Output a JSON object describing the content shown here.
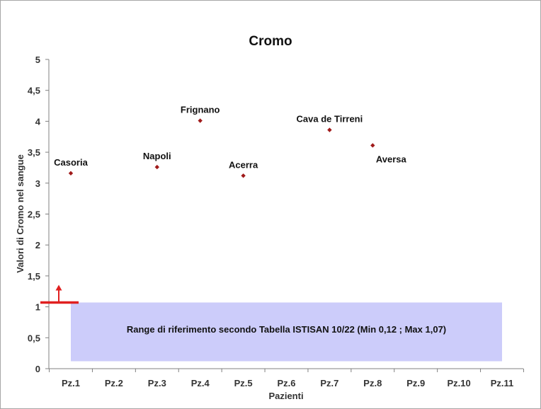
{
  "chart_data": {
    "type": "scatter",
    "title": "Cromo",
    "xlabel": "Pazienti",
    "ylabel": "Valori di Cromo nel sangue",
    "categories": [
      "Pz.1",
      "Pz.2",
      "Pz.3",
      "Pz.4",
      "Pz.5",
      "Pz.6",
      "Pz.7",
      "Pz.8",
      "Pz.9",
      "Pz.10",
      "Pz.11"
    ],
    "ylim": [
      0,
      5
    ],
    "yticks": [
      "0",
      "0,5",
      "1",
      "1,5",
      "2",
      "2,5",
      "3",
      "3,5",
      "4",
      "4,5",
      "5"
    ],
    "ytick_values": [
      0,
      0.5,
      1,
      1.5,
      2,
      2.5,
      3,
      3.5,
      4,
      4.5,
      5
    ],
    "grid": false,
    "legend": "none",
    "points": [
      {
        "category": "Pz.1",
        "value": 3.16,
        "label": "Casoria",
        "label_pos": "above"
      },
      {
        "category": "Pz.3",
        "value": 3.26,
        "label": "Napoli",
        "label_pos": "above"
      },
      {
        "category": "Pz.4",
        "value": 4.01,
        "label": "Frignano",
        "label_pos": "above"
      },
      {
        "category": "Pz.5",
        "value": 3.12,
        "label": "Acerra",
        "label_pos": "above"
      },
      {
        "category": "Pz.7",
        "value": 3.86,
        "label": "Cava de Tirreni",
        "label_pos": "above"
      },
      {
        "category": "Pz.8",
        "value": 3.61,
        "label": "Aversa",
        "label_pos": "below"
      }
    ],
    "reference_range": {
      "min": 0.12,
      "max": 1.07,
      "text": "Range di riferimento secondo Tabella ISTISAN 10/22 (Min 0,12 ; Max 1,07)",
      "color": "#ccccfa",
      "from_category": "Pz.1",
      "to_category": "Pz.11"
    },
    "marker_color": "#a01a1a",
    "indicator": {
      "value": 1.07,
      "direction": "up",
      "color": "#e02020"
    }
  }
}
